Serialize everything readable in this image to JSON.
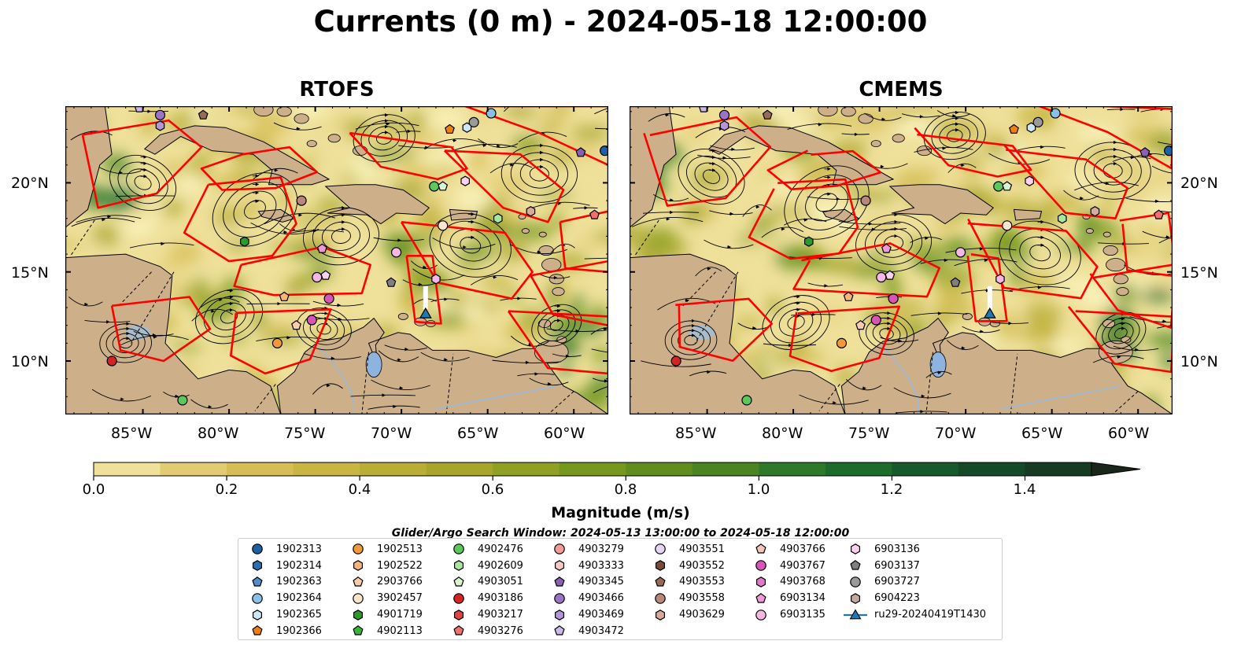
{
  "title": "Currents (0 m) - 2024-05-18 12:00:00",
  "panels": [
    {
      "title": "RTOFS"
    },
    {
      "title": "CMEMS"
    }
  ],
  "axes": {
    "lon_ticks": [
      "85°W",
      "80°W",
      "75°W",
      "70°W",
      "65°W",
      "60°W"
    ],
    "lon_values": [
      -85,
      -80,
      -75,
      -70,
      -65,
      -60
    ],
    "lat_ticks": [
      "20°N",
      "15°N",
      "10°N"
    ],
    "lat_values": [
      20,
      15,
      10
    ],
    "lon_range": [
      -89.5,
      -58
    ],
    "lat_range": [
      7,
      24.3
    ]
  },
  "colorbar": {
    "label": "Magnitude (m/s)",
    "ticks": [
      "0.0",
      "0.2",
      "0.4",
      "0.6",
      "0.8",
      "1.0",
      "1.2",
      "1.4"
    ],
    "tick_values": [
      0.0,
      0.2,
      0.4,
      0.6,
      0.8,
      1.0,
      1.2,
      1.4
    ],
    "range": [
      0,
      1.5
    ],
    "extend": "max",
    "colors": [
      "#fbf5c0",
      "#efe09a",
      "#e2cc72",
      "#d6bd55",
      "#c8b544",
      "#b8ad36",
      "#a8a52c",
      "#8fa024",
      "#77981e",
      "#5f8d1e",
      "#4a8524",
      "#2f7a2a",
      "#1e6c2c",
      "#16592a",
      "#154a28",
      "#163a22",
      "#18301e",
      "#1a261a"
    ]
  },
  "search_window": "Glider/Argo Search Window: 2024-05-13 13:00:00 to 2024-05-18 12:00:00",
  "land_color": "#cdb089",
  "track_color": "#ff0000",
  "legend": {
    "columns": [
      [
        {
          "label": "1902313",
          "marker": "circle",
          "color": "#1f5fa5"
        },
        {
          "label": "1902314",
          "marker": "hexagon",
          "color": "#2a6fb5"
        },
        {
          "label": "1902363",
          "marker": "pentagon",
          "color": "#4e8fcc"
        },
        {
          "label": "1902364",
          "marker": "circle",
          "color": "#8cbfe6"
        },
        {
          "label": "1902365",
          "marker": "hexagon",
          "color": "#cfe6f5"
        },
        {
          "label": "1902366",
          "marker": "pentagon",
          "color": "#f07f10"
        }
      ],
      [
        {
          "label": "1902513",
          "marker": "circle",
          "color": "#f29a3a"
        },
        {
          "label": "1902522",
          "marker": "hexagon",
          "color": "#f7b57a"
        },
        {
          "label": "2903766",
          "marker": "pentagon",
          "color": "#f9ccaa"
        },
        {
          "label": "3902457",
          "marker": "circle",
          "color": "#fde4cc"
        },
        {
          "label": "4901719",
          "marker": "hexagon",
          "color": "#2a9a2a"
        },
        {
          "label": "4902113",
          "marker": "pentagon",
          "color": "#36b536"
        }
      ],
      [
        {
          "label": "4902476",
          "marker": "circle",
          "color": "#5cc85c"
        },
        {
          "label": "4902609",
          "marker": "hexagon",
          "color": "#a8e6a0"
        },
        {
          "label": "4903051",
          "marker": "pentagon",
          "color": "#d8f5d0"
        },
        {
          "label": "4903186",
          "marker": "circle",
          "color": "#d62222"
        },
        {
          "label": "4903217",
          "marker": "hexagon",
          "color": "#e04545"
        },
        {
          "label": "4903276",
          "marker": "pentagon",
          "color": "#f07070"
        }
      ],
      [
        {
          "label": "4903279",
          "marker": "circle",
          "color": "#f49a9a"
        },
        {
          "label": "4903333",
          "marker": "hexagon",
          "color": "#fbc8c8"
        },
        {
          "label": "4903345",
          "marker": "pentagon",
          "color": "#8a5fb8"
        },
        {
          "label": "4903466",
          "marker": "circle",
          "color": "#9a72c6"
        },
        {
          "label": "4903469",
          "marker": "hexagon",
          "color": "#b496d8"
        },
        {
          "label": "4903472",
          "marker": "pentagon",
          "color": "#cdb8ea"
        }
      ],
      [
        {
          "label": "4903551",
          "marker": "circle",
          "color": "#e6d5f5"
        },
        {
          "label": "4903552",
          "marker": "hexagon",
          "color": "#7a4a3a"
        },
        {
          "label": "4903553",
          "marker": "pentagon",
          "color": "#9a6a58"
        },
        {
          "label": "4903558",
          "marker": "circle",
          "color": "#b8867a"
        },
        {
          "label": "4903629",
          "marker": "hexagon",
          "color": "#d8aa9a"
        },
        {
          "label": "",
          "marker": "none",
          "color": "#ffffff"
        }
      ],
      [
        {
          "label": "4903766",
          "marker": "pentagon",
          "color": "#f2c6b8"
        },
        {
          "label": "4903767",
          "marker": "circle",
          "color": "#d855b8"
        },
        {
          "label": "4903768",
          "marker": "hexagon",
          "color": "#e27ac8"
        },
        {
          "label": "6903134",
          "marker": "pentagon",
          "color": "#ee9ad6"
        },
        {
          "label": "6903135",
          "marker": "circle",
          "color": "#f5b8e4"
        },
        {
          "label": "",
          "marker": "none",
          "color": "#ffffff"
        }
      ],
      [
        {
          "label": "6903136",
          "marker": "hexagon",
          "color": "#fad2ef"
        },
        {
          "label": "6903137",
          "marker": "pentagon",
          "color": "#7f7f7f"
        },
        {
          "label": "6903727",
          "marker": "circle",
          "color": "#9a9a9a"
        },
        {
          "label": "6904223",
          "marker": "hexagon",
          "color": "#c4a8a0"
        },
        {
          "label": "ru29-20240419T1430",
          "marker": "triangle-line",
          "color": "#1f77b4"
        },
        {
          "label": "",
          "marker": "none",
          "color": "#ffffff"
        }
      ]
    ]
  },
  "floats": [
    {
      "lon": -85.2,
      "lat": 24.2,
      "color": "#cdb8ea",
      "marker": "pentagon"
    },
    {
      "lon": -84.0,
      "lat": 23.8,
      "color": "#9a72c6",
      "marker": "circle"
    },
    {
      "lon": -84.0,
      "lat": 23.2,
      "color": "#b496d8",
      "marker": "hexagon"
    },
    {
      "lon": -81.5,
      "lat": 23.8,
      "color": "#9a6a58",
      "marker": "pentagon"
    },
    {
      "lon": -67.2,
      "lat": 23.0,
      "color": "#f07f10",
      "marker": "pentagon"
    },
    {
      "lon": -66.2,
      "lat": 23.1,
      "color": "#cfe6f5",
      "marker": "hexagon"
    },
    {
      "lon": -65.8,
      "lat": 23.4,
      "color": "#9a9a9a",
      "marker": "circle"
    },
    {
      "lon": -64.8,
      "lat": 23.9,
      "color": "#8cbfe6",
      "marker": "circle"
    },
    {
      "lon": -59.6,
      "lat": 21.7,
      "color": "#8a5fb8",
      "marker": "pentagon"
    },
    {
      "lon": -58.2,
      "lat": 21.8,
      "color": "#1f5fa5",
      "marker": "circle"
    },
    {
      "lon": -75.8,
      "lat": 19.0,
      "color": "#b8867a",
      "marker": "circle"
    },
    {
      "lon": -68.1,
      "lat": 19.8,
      "color": "#5cc85c",
      "marker": "circle"
    },
    {
      "lon": -67.6,
      "lat": 19.8,
      "color": "#d8f5d0",
      "marker": "pentagon"
    },
    {
      "lon": -66.3,
      "lat": 20.1,
      "color": "#fad2ef",
      "marker": "hexagon"
    },
    {
      "lon": -64.4,
      "lat": 18.0,
      "color": "#a8e6a0",
      "marker": "hexagon"
    },
    {
      "lon": -62.5,
      "lat": 18.4,
      "color": "#d8aa9a",
      "marker": "hexagon"
    },
    {
      "lon": -58.8,
      "lat": 18.2,
      "color": "#f07070",
      "marker": "pentagon"
    },
    {
      "lon": -67.6,
      "lat": 17.6,
      "color": "#fde4cc",
      "marker": "circle"
    },
    {
      "lon": -79.1,
      "lat": 16.7,
      "color": "#2a9a2a",
      "marker": "hexagon"
    },
    {
      "lon": -74.6,
      "lat": 16.3,
      "color": "#ee9ad6",
      "marker": "pentagon"
    },
    {
      "lon": -70.3,
      "lat": 16.1,
      "color": "#f5b8e4",
      "marker": "circle"
    },
    {
      "lon": -74.9,
      "lat": 14.7,
      "color": "#f5b8e4",
      "marker": "circle"
    },
    {
      "lon": -74.4,
      "lat": 14.8,
      "color": "#fad2ef",
      "marker": "pentagon"
    },
    {
      "lon": -70.6,
      "lat": 14.4,
      "color": "#7f7f7f",
      "marker": "pentagon"
    },
    {
      "lon": -68.0,
      "lat": 14.6,
      "color": "#f5b8e4",
      "marker": "hexagon"
    },
    {
      "lon": -76.8,
      "lat": 13.6,
      "color": "#f7b57a",
      "marker": "pentagon"
    },
    {
      "lon": -74.2,
      "lat": 13.5,
      "color": "#d855b8",
      "marker": "circle"
    },
    {
      "lon": -75.2,
      "lat": 12.3,
      "color": "#d855b8",
      "marker": "circle"
    },
    {
      "lon": -77.2,
      "lat": 11.0,
      "color": "#f29a3a",
      "marker": "circle"
    },
    {
      "lon": -76.1,
      "lat": 12.0,
      "color": "#f9ccaa",
      "marker": "pentagon"
    },
    {
      "lon": -86.8,
      "lat": 10.0,
      "color": "#d62222",
      "marker": "circle"
    },
    {
      "lon": -82.7,
      "lat": 7.8,
      "color": "#5cc85c",
      "marker": "circle"
    }
  ],
  "glider": {
    "lon": -68.6,
    "lat": 12.6,
    "color": "#1f77b4"
  }
}
